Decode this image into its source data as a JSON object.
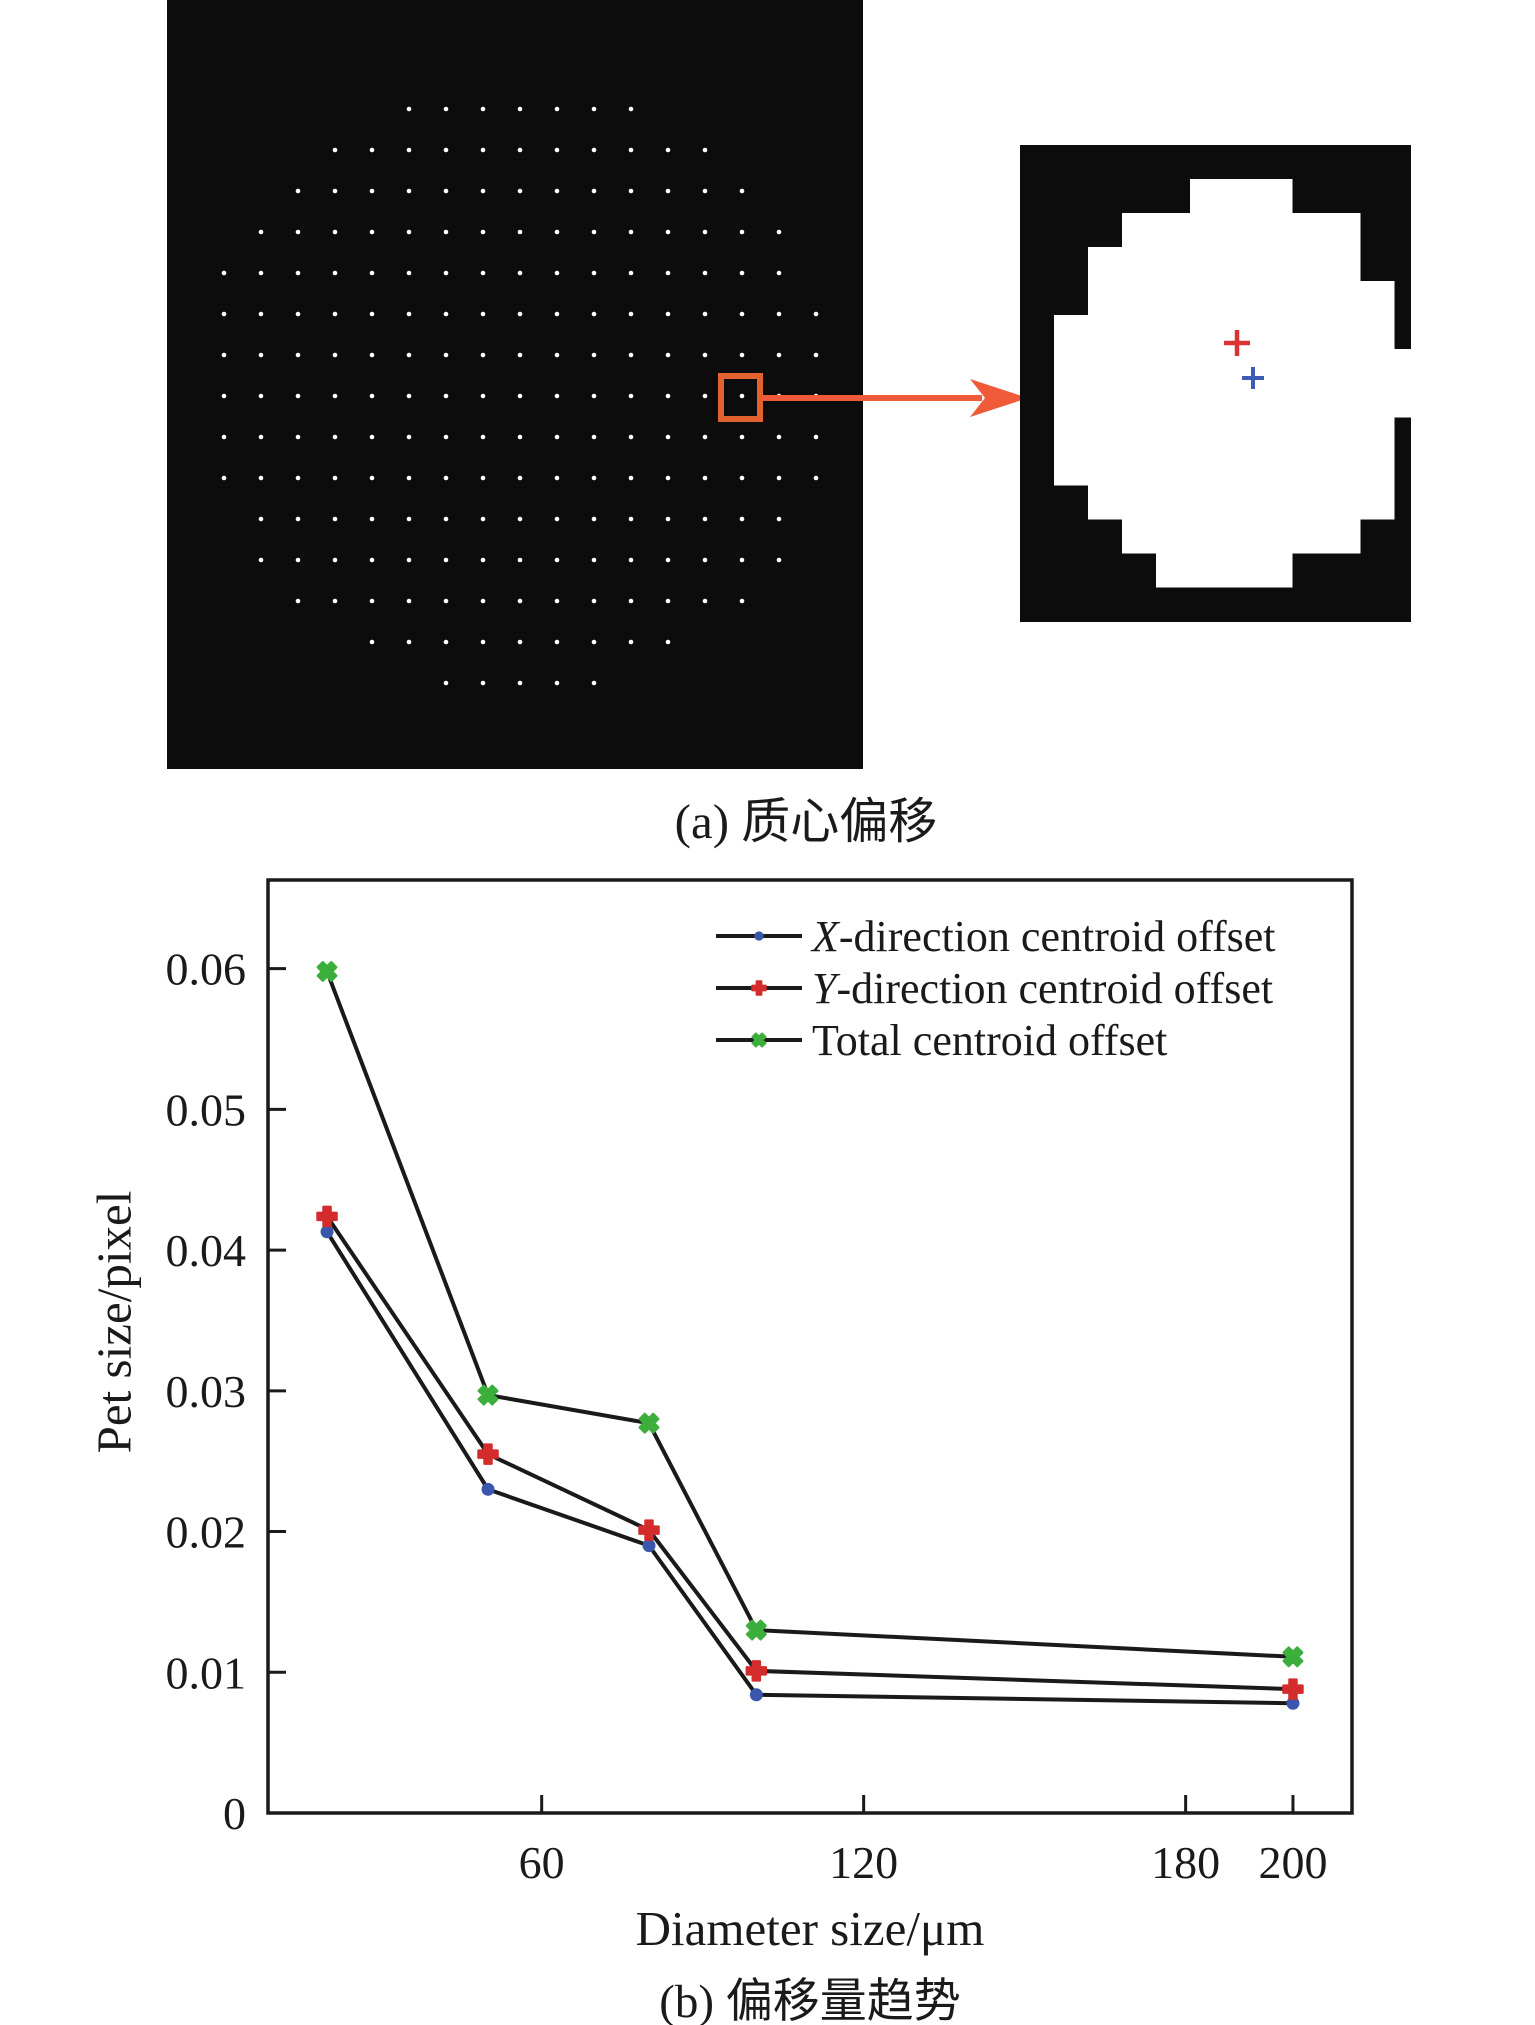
{
  "panel_a": {
    "caption": "(a) 质心偏移",
    "background": "#0c0c0c",
    "dot_color": "#ffffff",
    "highlight_color": "#e2622f",
    "arrow_color": "#ef5a38"
  },
  "inset": {
    "background": "#0c0c0c",
    "spot_color": "#ffffff",
    "red_cross_color": "#dc3232",
    "blue_cross_color": "#3e5cb5"
  },
  "chart": {
    "caption": "(b) 偏移量趋势"
  },
  "chart_data": {
    "type": "line",
    "xlabel": "Diameter size/μm",
    "ylabel": "Pet size/pixel",
    "x": [
      20,
      50,
      80,
      100,
      200
    ],
    "series": [
      {
        "name": "X-direction centroid offset",
        "italic_first": true,
        "marker": "circle",
        "marker_color": "#3a57ad",
        "values": [
          0.0413,
          0.023,
          0.019,
          0.0084,
          0.0078
        ]
      },
      {
        "name": "Y-direction centroid offset",
        "italic_first": true,
        "marker": "plus_filled",
        "marker_color": "#d42c2c",
        "values": [
          0.0424,
          0.0255,
          0.0201,
          0.0101,
          0.0088
        ]
      },
      {
        "name": "Total centroid offset",
        "italic_first": false,
        "marker": "x_filled",
        "marker_color": "#3cae3c",
        "values": [
          0.0598,
          0.0297,
          0.0277,
          0.013,
          0.0111
        ]
      }
    ],
    "xlim": [
      9,
      211
    ],
    "ylim": [
      0,
      0.0663
    ],
    "xticks": [
      {
        "value": 60,
        "label": "60"
      },
      {
        "value": 120,
        "label": "120"
      },
      {
        "value": 180,
        "label": "180"
      },
      {
        "value": 200,
        "label": "200"
      }
    ],
    "yticks": [
      {
        "value": 0,
        "label": "0"
      },
      {
        "value": 0.01,
        "label": "0.01"
      },
      {
        "value": 0.02,
        "label": "0.02"
      },
      {
        "value": 0.03,
        "label": "0.03"
      },
      {
        "value": 0.04,
        "label": "0.04"
      },
      {
        "value": 0.05,
        "label": "0.05"
      },
      {
        "value": 0.06,
        "label": "0.06"
      }
    ],
    "line_color": "#1a1a1a",
    "legend_position": "upper right",
    "grid": false
  }
}
